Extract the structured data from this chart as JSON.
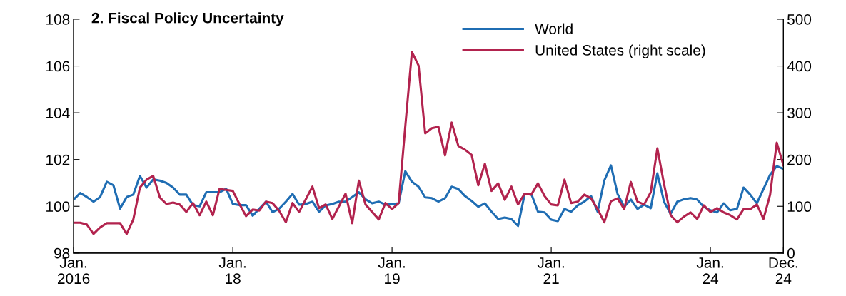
{
  "chart_data": {
    "type": "line",
    "title": "2. Fiscal Policy Uncertainty",
    "categories": [
      "Jan.\n2016",
      null,
      null,
      null,
      null,
      null,
      null,
      null,
      null,
      null,
      null,
      null,
      null,
      null,
      null,
      null,
      null,
      null,
      null,
      null,
      null,
      null,
      null,
      null,
      "Jan.\n18",
      null,
      null,
      null,
      null,
      null,
      null,
      null,
      null,
      null,
      null,
      null,
      null,
      null,
      null,
      null,
      null,
      null,
      null,
      null,
      null,
      null,
      null,
      null,
      "Jan.\n19",
      null,
      null,
      null,
      null,
      null,
      null,
      null,
      null,
      null,
      null,
      null,
      null,
      null,
      null,
      null,
      null,
      null,
      null,
      null,
      null,
      null,
      null,
      null,
      "Jan.\n21",
      null,
      null,
      null,
      null,
      null,
      null,
      null,
      null,
      null,
      null,
      null,
      null,
      null,
      null,
      null,
      null,
      null,
      null,
      null,
      null,
      null,
      null,
      null,
      "Jan.\n24",
      null,
      null,
      null,
      null,
      null,
      null,
      null,
      null,
      null,
      null,
      "Dec.\n24"
    ],
    "ylim": [
      98,
      108
    ],
    "yticks": [
      98,
      100,
      102,
      104,
      106,
      108
    ],
    "y2lim": [
      0,
      500
    ],
    "y2ticks": [
      0,
      100,
      200,
      300,
      400,
      500
    ],
    "legend": "top",
    "grid": false,
    "line_style": "solid",
    "marker": "none",
    "series": [
      {
        "name": "World",
        "color": "#1f6db3",
        "values": [
          100.29,
          100.57,
          100.4,
          100.2,
          100.4,
          101.05,
          100.9,
          99.9,
          100.4,
          100.5,
          101.3,
          100.8,
          101.15,
          101.1,
          101.0,
          100.8,
          100.5,
          100.5,
          100.05,
          100.0,
          100.6,
          100.6,
          100.6,
          100.75,
          100.1,
          100.05,
          100.05,
          99.6,
          99.9,
          100.2,
          99.75,
          99.9,
          100.2,
          100.53,
          100.07,
          100.1,
          100.2,
          99.77,
          100.04,
          100.1,
          100.2,
          100.2,
          100.4,
          100.6,
          100.3,
          100.13,
          100.2,
          100.07,
          100.1,
          100.13,
          101.5,
          101.05,
          100.84,
          100.38,
          100.35,
          100.2,
          100.35,
          100.84,
          100.74,
          100.44,
          100.23,
          99.98,
          100.13,
          99.77,
          99.46,
          99.52,
          99.46,
          99.16,
          100.53,
          100.53,
          99.77,
          99.74,
          99.43,
          99.37,
          99.89,
          99.77,
          100.04,
          100.2,
          100.44,
          99.77,
          101.1,
          101.75,
          100.53,
          99.98,
          100.29,
          99.89,
          100.07,
          99.92,
          101.41,
          100.2,
          99.68,
          100.2,
          100.3,
          100.35,
          100.29,
          99.98,
          99.83,
          99.74,
          100.13,
          99.83,
          99.89,
          100.8,
          100.5,
          100.13,
          100.74,
          101.35,
          101.72,
          101.6
        ]
      },
      {
        "name": "United States (right scale)",
        "color": "#b2234e",
        "axis": "y2",
        "values": [
          65,
          65,
          61,
          41,
          55,
          64,
          64,
          64,
          41,
          72,
          140,
          157,
          165,
          119,
          105,
          108,
          104,
          88,
          107,
          81,
          110,
          81,
          137,
          135,
          133,
          105,
          79,
          93,
          91,
          110,
          107,
          90,
          66,
          107,
          88,
          115,
          142,
          96,
          104,
          73,
          100,
          127,
          64,
          155,
          104,
          88,
          72,
          107,
          94,
          107,
          271,
          430,
          401,
          256,
          267,
          270,
          209,
          279,
          229,
          221,
          210,
          145,
          191,
          133,
          149,
          114,
          142,
          104,
          127,
          125,
          149,
          122,
          104,
          102,
          157,
          107,
          110,
          125,
          117,
          94,
          66,
          111,
          117,
          94,
          152,
          110,
          104,
          130,
          224,
          148,
          81,
          66,
          78,
          87,
          73,
          102,
          88,
          96,
          87,
          81,
          72,
          94,
          94,
          104,
          73,
          125,
          236,
          188
        ]
      }
    ]
  }
}
